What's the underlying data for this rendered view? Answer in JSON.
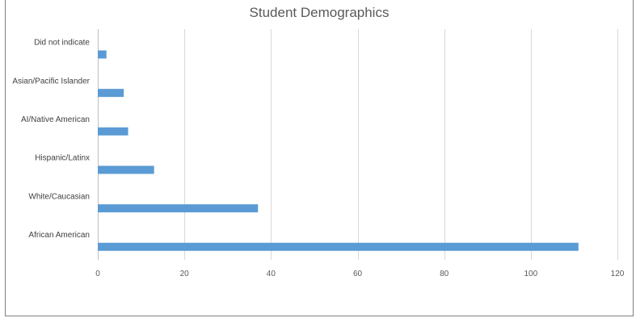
{
  "chart_data": {
    "type": "bar",
    "orientation": "horizontal",
    "title": "Student Demographics",
    "xlabel": "",
    "ylabel": "",
    "categories": [
      "African American",
      "White/Caucasian",
      "Hispanic/Latinx",
      "AI/Native American",
      "Asian/Pacific Islander",
      "Did not indicate"
    ],
    "values": [
      111,
      37,
      13,
      7,
      6,
      2
    ],
    "xlim": [
      0,
      120
    ],
    "xticks": [
      "0",
      "20",
      "40",
      "60",
      "80",
      "100",
      "120"
    ],
    "grid": "vertical",
    "legend": "none",
    "colors": {
      "bar": "#5b9bd5",
      "grid": "#d9d9d9",
      "text": "#595959"
    }
  }
}
